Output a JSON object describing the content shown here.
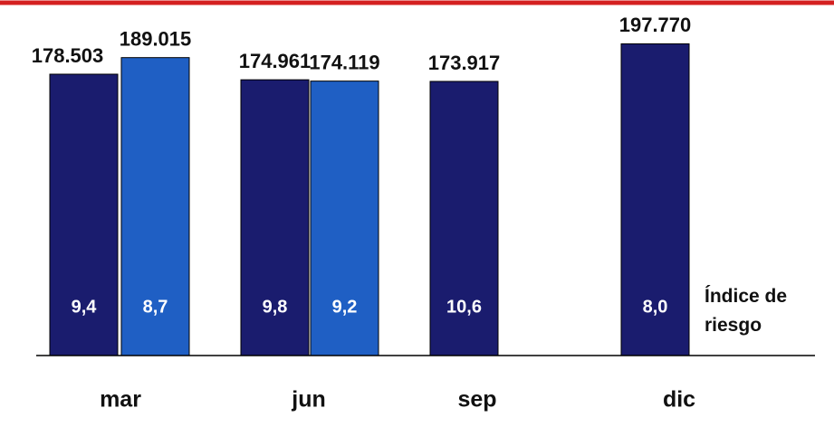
{
  "chart_data": {
    "type": "bar",
    "categories": [
      "mar",
      "jun",
      "sep",
      "dic"
    ],
    "series": [
      {
        "color": "#1a1c6e",
        "values": [
          178503,
          174961,
          173917,
          197770
        ],
        "value_labels": [
          "178.503",
          "174.961",
          "173.917",
          "197.770"
        ],
        "risk": [
          9.4,
          9.8,
          10.6,
          8.0
        ],
        "risk_labels": [
          "9,4",
          "9,8",
          "10,6",
          "8,0"
        ]
      },
      {
        "color": "#1f5fc4",
        "values": [
          189015,
          174119,
          null,
          null
        ],
        "value_labels": [
          "189.015",
          "174.119",
          null,
          null
        ],
        "risk": [
          8.7,
          9.2,
          null,
          null
        ],
        "risk_labels": [
          "8,7",
          "9,2",
          null,
          null
        ]
      }
    ],
    "annotation": "Índice de riesgo"
  }
}
